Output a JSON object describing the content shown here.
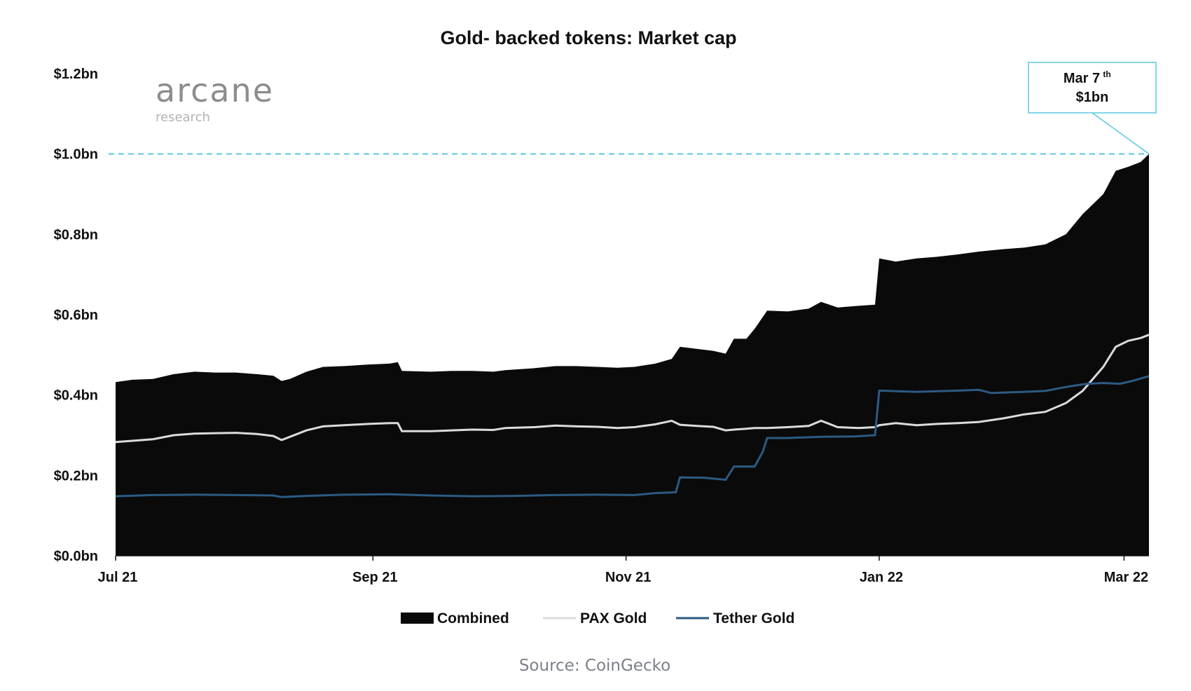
{
  "brand": {
    "name": "arcane",
    "tagline": "research"
  },
  "source": "Source: CoinGecko",
  "annotation": {
    "date": "Mar 7",
    "date_suffix": "th",
    "value": "$1bn",
    "reference_value": 1.0
  },
  "colors": {
    "combined": "#0a0a0a",
    "pax_gold": "#d9dcdf",
    "tether_gold": "#2c5a83",
    "reference_line": "#5bc8e0",
    "callout_border": "#5bc8e0",
    "axis": "#111111"
  },
  "chart_data": {
    "type": "area",
    "title": "Gold- backed tokens: Market cap",
    "xlabel": "",
    "ylabel": "",
    "x_range": [
      "2021-07-01",
      "2022-03-07"
    ],
    "ylim": [
      0,
      1.2
    ],
    "y_ticks": [
      {
        "value": 0.0,
        "label": "$0.0bn"
      },
      {
        "value": 0.2,
        "label": "$0.2bn"
      },
      {
        "value": 0.4,
        "label": "$0.4bn"
      },
      {
        "value": 0.6,
        "label": "$0.6bn"
      },
      {
        "value": 0.8,
        "label": "$0.8bn"
      },
      {
        "value": 1.0,
        "label": "$1.0bn"
      },
      {
        "value": 1.2,
        "label": "$1.2bn"
      }
    ],
    "x_ticks": [
      {
        "date": "2021-07-01",
        "label": "Jul 21"
      },
      {
        "date": "2021-09-01",
        "label": "Sep 21"
      },
      {
        "date": "2021-11-01",
        "label": "Nov 21"
      },
      {
        "date": "2022-01-01",
        "label": "Jan 22"
      },
      {
        "date": "2022-03-01",
        "label": "Mar 22"
      }
    ],
    "grid": false,
    "legend_position": "bottom-center",
    "series": [
      {
        "name": "Combined",
        "style": "area",
        "points": [
          [
            "2021-07-01",
            0.432
          ],
          [
            "2021-07-05",
            0.438
          ],
          [
            "2021-07-10",
            0.44
          ],
          [
            "2021-07-15",
            0.452
          ],
          [
            "2021-07-20",
            0.458
          ],
          [
            "2021-07-25",
            0.456
          ],
          [
            "2021-07-30",
            0.456
          ],
          [
            "2021-08-04",
            0.452
          ],
          [
            "2021-08-08",
            0.448
          ],
          [
            "2021-08-10",
            0.435
          ],
          [
            "2021-08-12",
            0.44
          ],
          [
            "2021-08-16",
            0.458
          ],
          [
            "2021-08-20",
            0.47
          ],
          [
            "2021-08-25",
            0.472
          ],
          [
            "2021-08-31",
            0.476
          ],
          [
            "2021-09-05",
            0.478
          ],
          [
            "2021-09-07",
            0.482
          ],
          [
            "2021-09-08",
            0.46
          ],
          [
            "2021-09-15",
            0.458
          ],
          [
            "2021-09-20",
            0.46
          ],
          [
            "2021-09-25",
            0.46
          ],
          [
            "2021-09-30",
            0.458
          ],
          [
            "2021-10-03",
            0.462
          ],
          [
            "2021-10-10",
            0.467
          ],
          [
            "2021-10-15",
            0.472
          ],
          [
            "2021-10-20",
            0.472
          ],
          [
            "2021-10-25",
            0.47
          ],
          [
            "2021-10-30",
            0.468
          ],
          [
            "2021-11-03",
            0.47
          ],
          [
            "2021-11-08",
            0.478
          ],
          [
            "2021-11-12",
            0.49
          ],
          [
            "2021-11-14",
            0.52
          ],
          [
            "2021-11-18",
            0.515
          ],
          [
            "2021-11-22",
            0.51
          ],
          [
            "2021-11-25",
            0.503
          ],
          [
            "2021-11-27",
            0.54
          ],
          [
            "2021-11-30",
            0.54
          ],
          [
            "2021-12-02",
            0.565
          ],
          [
            "2021-12-05",
            0.61
          ],
          [
            "2021-12-10",
            0.608
          ],
          [
            "2021-12-15",
            0.615
          ],
          [
            "2021-12-18",
            0.632
          ],
          [
            "2021-12-22",
            0.618
          ],
          [
            "2021-12-27",
            0.622
          ],
          [
            "2021-12-31",
            0.625
          ],
          [
            "2022-01-01",
            0.74
          ],
          [
            "2022-01-05",
            0.732
          ],
          [
            "2022-01-10",
            0.74
          ],
          [
            "2022-01-15",
            0.744
          ],
          [
            "2022-01-20",
            0.75
          ],
          [
            "2022-01-25",
            0.757
          ],
          [
            "2022-01-31",
            0.763
          ],
          [
            "2022-02-05",
            0.767
          ],
          [
            "2022-02-10",
            0.775
          ],
          [
            "2022-02-15",
            0.8
          ],
          [
            "2022-02-19",
            0.85
          ],
          [
            "2022-02-24",
            0.9
          ],
          [
            "2022-02-27",
            0.958
          ],
          [
            "2022-03-02",
            0.968
          ],
          [
            "2022-03-05",
            0.98
          ],
          [
            "2022-03-07",
            1.0
          ]
        ]
      },
      {
        "name": "PAX Gold",
        "style": "line",
        "points": [
          [
            "2021-07-01",
            0.283
          ],
          [
            "2021-07-05",
            0.286
          ],
          [
            "2021-07-10",
            0.29
          ],
          [
            "2021-07-15",
            0.3
          ],
          [
            "2021-07-20",
            0.304
          ],
          [
            "2021-07-25",
            0.305
          ],
          [
            "2021-07-30",
            0.306
          ],
          [
            "2021-08-04",
            0.303
          ],
          [
            "2021-08-08",
            0.298
          ],
          [
            "2021-08-10",
            0.288
          ],
          [
            "2021-08-12",
            0.296
          ],
          [
            "2021-08-16",
            0.312
          ],
          [
            "2021-08-20",
            0.322
          ],
          [
            "2021-08-25",
            0.325
          ],
          [
            "2021-08-31",
            0.328
          ],
          [
            "2021-09-05",
            0.33
          ],
          [
            "2021-09-07",
            0.33
          ],
          [
            "2021-09-08",
            0.31
          ],
          [
            "2021-09-15",
            0.31
          ],
          [
            "2021-09-20",
            0.312
          ],
          [
            "2021-09-25",
            0.314
          ],
          [
            "2021-09-30",
            0.313
          ],
          [
            "2021-10-03",
            0.318
          ],
          [
            "2021-10-10",
            0.32
          ],
          [
            "2021-10-15",
            0.324
          ],
          [
            "2021-10-20",
            0.322
          ],
          [
            "2021-10-25",
            0.321
          ],
          [
            "2021-10-30",
            0.318
          ],
          [
            "2021-11-03",
            0.32
          ],
          [
            "2021-11-08",
            0.327
          ],
          [
            "2021-11-12",
            0.336
          ],
          [
            "2021-11-14",
            0.326
          ],
          [
            "2021-11-18",
            0.323
          ],
          [
            "2021-11-22",
            0.321
          ],
          [
            "2021-11-25",
            0.312
          ],
          [
            "2021-11-27",
            0.314
          ],
          [
            "2021-11-30",
            0.316
          ],
          [
            "2021-12-02",
            0.318
          ],
          [
            "2021-12-05",
            0.318
          ],
          [
            "2021-12-10",
            0.32
          ],
          [
            "2021-12-15",
            0.323
          ],
          [
            "2021-12-18",
            0.336
          ],
          [
            "2021-12-22",
            0.32
          ],
          [
            "2021-12-27",
            0.318
          ],
          [
            "2021-12-31",
            0.32
          ],
          [
            "2022-01-01",
            0.325
          ],
          [
            "2022-01-05",
            0.33
          ],
          [
            "2022-01-10",
            0.325
          ],
          [
            "2022-01-15",
            0.328
          ],
          [
            "2022-01-20",
            0.33
          ],
          [
            "2022-01-25",
            0.333
          ],
          [
            "2022-01-31",
            0.342
          ],
          [
            "2022-02-05",
            0.352
          ],
          [
            "2022-02-10",
            0.358
          ],
          [
            "2022-02-15",
            0.38
          ],
          [
            "2022-02-19",
            0.41
          ],
          [
            "2022-02-24",
            0.47
          ],
          [
            "2022-02-27",
            0.52
          ],
          [
            "2022-03-02",
            0.535
          ],
          [
            "2022-03-05",
            0.542
          ],
          [
            "2022-03-07",
            0.55
          ]
        ]
      },
      {
        "name": "Tether Gold",
        "style": "line",
        "points": [
          [
            "2021-07-01",
            0.148
          ],
          [
            "2021-07-10",
            0.151
          ],
          [
            "2021-07-20",
            0.152
          ],
          [
            "2021-07-30",
            0.151
          ],
          [
            "2021-08-08",
            0.15
          ],
          [
            "2021-08-10",
            0.146
          ],
          [
            "2021-08-16",
            0.149
          ],
          [
            "2021-08-25",
            0.152
          ],
          [
            "2021-09-05",
            0.153
          ],
          [
            "2021-09-15",
            0.15
          ],
          [
            "2021-09-25",
            0.148
          ],
          [
            "2021-10-05",
            0.149
          ],
          [
            "2021-10-15",
            0.151
          ],
          [
            "2021-10-25",
            0.152
          ],
          [
            "2021-11-03",
            0.151
          ],
          [
            "2021-11-08",
            0.156
          ],
          [
            "2021-11-13",
            0.158
          ],
          [
            "2021-11-14",
            0.195
          ],
          [
            "2021-11-20",
            0.194
          ],
          [
            "2021-11-25",
            0.189
          ],
          [
            "2021-11-27",
            0.222
          ],
          [
            "2021-11-30",
            0.222
          ],
          [
            "2021-12-02",
            0.222
          ],
          [
            "2021-12-04",
            0.26
          ],
          [
            "2021-12-05",
            0.293
          ],
          [
            "2021-12-10",
            0.293
          ],
          [
            "2021-12-18",
            0.296
          ],
          [
            "2021-12-26",
            0.297
          ],
          [
            "2021-12-31",
            0.3
          ],
          [
            "2022-01-01",
            0.411
          ],
          [
            "2022-01-10",
            0.408
          ],
          [
            "2022-01-20",
            0.411
          ],
          [
            "2022-01-25",
            0.413
          ],
          [
            "2022-01-28",
            0.405
          ],
          [
            "2022-02-05",
            0.408
          ],
          [
            "2022-02-10",
            0.41
          ],
          [
            "2022-02-15",
            0.42
          ],
          [
            "2022-02-20",
            0.428
          ],
          [
            "2022-02-24",
            0.43
          ],
          [
            "2022-02-28",
            0.428
          ],
          [
            "2022-03-03",
            0.435
          ],
          [
            "2022-03-07",
            0.447
          ]
        ]
      }
    ]
  }
}
